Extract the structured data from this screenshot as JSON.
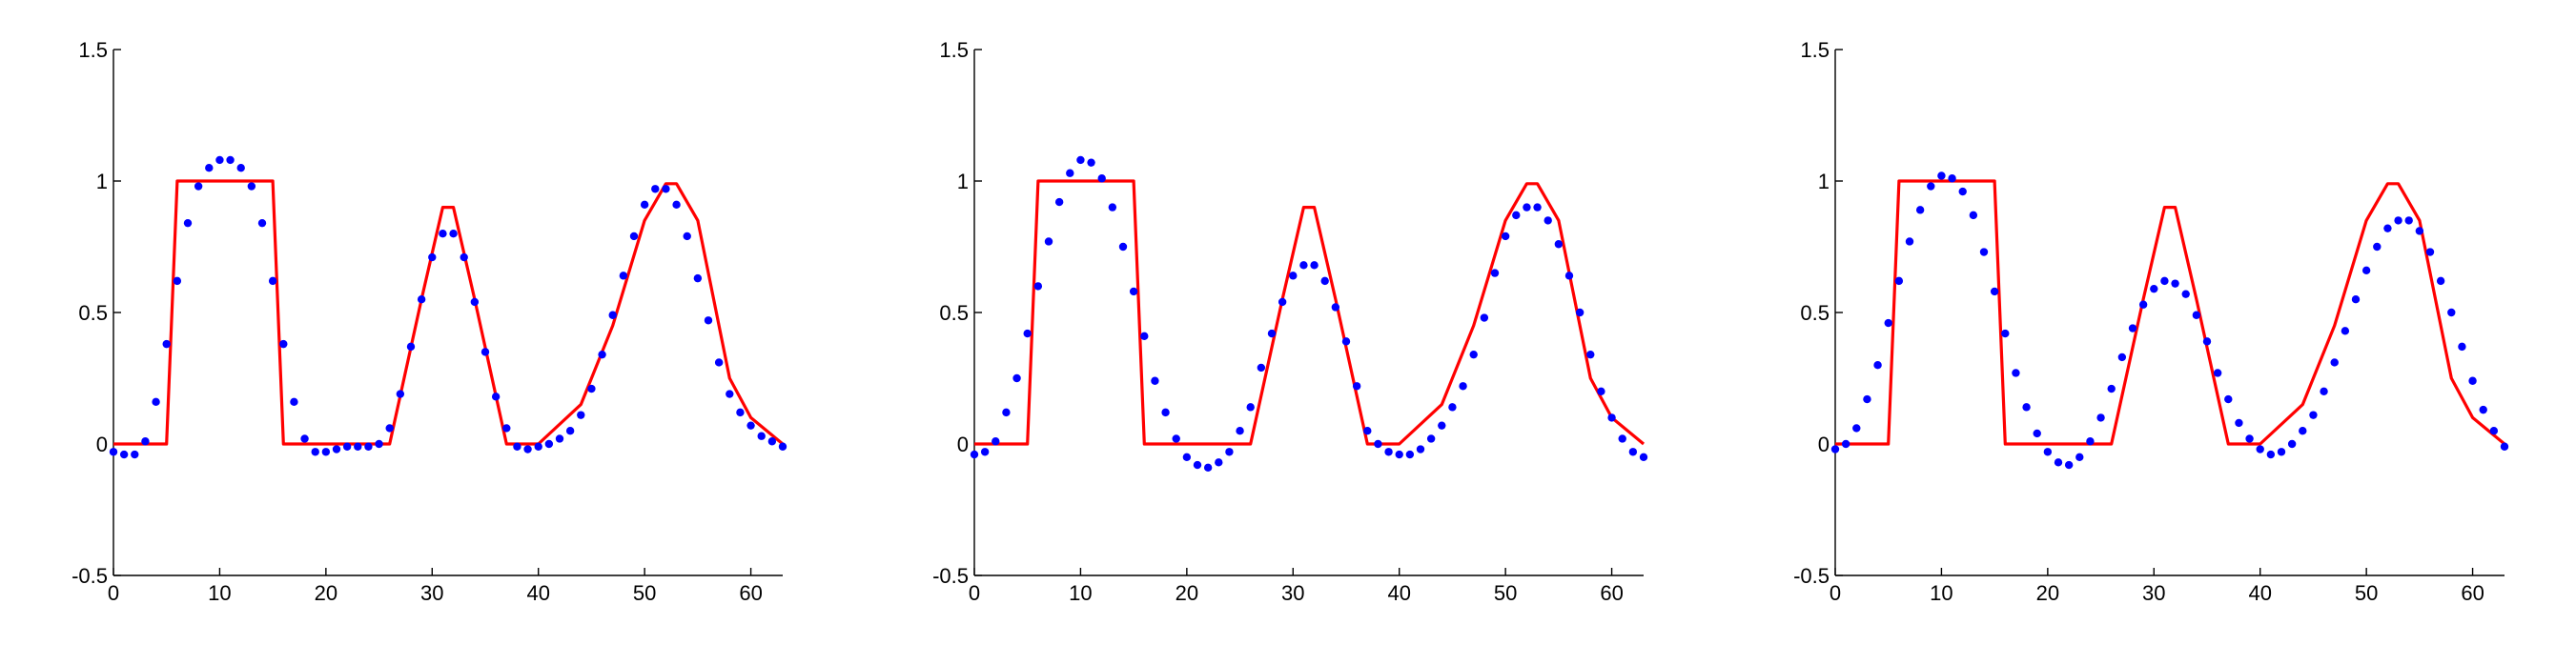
{
  "chart_data": [
    {
      "type": "line",
      "xlim": [
        0,
        63
      ],
      "ylim": [
        -0.5,
        1.5
      ],
      "xticks": [
        0,
        10,
        20,
        30,
        40,
        50,
        60
      ],
      "yticks": [
        -0.5,
        0,
        0.5,
        1,
        1.5
      ],
      "xtick_labels": [
        "0",
        "10",
        "20",
        "30",
        "40",
        "50",
        "60"
      ],
      "ytick_labels": [
        "-0.5",
        "0",
        "0.5",
        "1",
        "1.5"
      ],
      "grid": false,
      "series": [
        {
          "style": "line",
          "color": "#ff0000",
          "x": [
            0,
            5,
            6,
            15,
            16,
            26,
            29,
            31,
            32,
            34,
            37,
            40,
            44,
            47,
            50,
            52,
            53,
            55,
            58,
            60,
            63
          ],
          "y": [
            0,
            0,
            1,
            1,
            0,
            0,
            0.55,
            0.9,
            0.9,
            0.55,
            0,
            0,
            0.15,
            0.45,
            0.85,
            0.99,
            0.99,
            0.85,
            0.25,
            0.1,
            0
          ]
        },
        {
          "style": "scatter",
          "color": "#0000ff",
          "x": [
            0,
            1,
            2,
            3,
            4,
            5,
            6,
            7,
            8,
            9,
            10,
            11,
            12,
            13,
            14,
            15,
            16,
            17,
            18,
            19,
            20,
            21,
            22,
            23,
            24,
            25,
            26,
            27,
            28,
            29,
            30,
            31,
            32,
            33,
            34,
            35,
            36,
            37,
            38,
            39,
            40,
            41,
            42,
            43,
            44,
            45,
            46,
            47,
            48,
            49,
            50,
            51,
            52,
            53,
            54,
            55,
            56,
            57,
            58,
            59,
            60,
            61,
            62,
            63
          ],
          "y": [
            -0.03,
            -0.04,
            -0.04,
            0.01,
            0.16,
            0.38,
            0.62,
            0.84,
            0.98,
            1.05,
            1.08,
            1.08,
            1.05,
            0.98,
            0.84,
            0.62,
            0.38,
            0.16,
            0.02,
            -0.03,
            -0.03,
            -0.02,
            -0.01,
            -0.01,
            -0.01,
            0.0,
            0.06,
            0.19,
            0.37,
            0.55,
            0.71,
            0.8,
            0.8,
            0.71,
            0.54,
            0.35,
            0.18,
            0.06,
            -0.01,
            -0.02,
            -0.01,
            0.0,
            0.02,
            0.05,
            0.11,
            0.21,
            0.34,
            0.49,
            0.64,
            0.79,
            0.91,
            0.97,
            0.97,
            0.91,
            0.79,
            0.63,
            0.47,
            0.31,
            0.19,
            0.12,
            0.07,
            0.03,
            0.01,
            -0.01
          ]
        }
      ]
    },
    {
      "type": "line",
      "xlim": [
        0,
        63
      ],
      "ylim": [
        -0.5,
        1.5
      ],
      "xticks": [
        0,
        10,
        20,
        30,
        40,
        50,
        60
      ],
      "yticks": [
        -0.5,
        0,
        0.5,
        1,
        1.5
      ],
      "xtick_labels": [
        "0",
        "10",
        "20",
        "30",
        "40",
        "50",
        "60"
      ],
      "ytick_labels": [
        "-0.5",
        "0",
        "0.5",
        "1",
        "1.5"
      ],
      "grid": false,
      "series": [
        {
          "style": "line",
          "color": "#ff0000",
          "x": [
            0,
            5,
            6,
            15,
            16,
            26,
            29,
            31,
            32,
            34,
            37,
            40,
            44,
            47,
            50,
            52,
            53,
            55,
            58,
            60,
            63
          ],
          "y": [
            0,
            0,
            1,
            1,
            0,
            0,
            0.55,
            0.9,
            0.9,
            0.55,
            0,
            0,
            0.15,
            0.45,
            0.85,
            0.99,
            0.99,
            0.85,
            0.25,
            0.1,
            0
          ]
        },
        {
          "style": "scatter",
          "color": "#0000ff",
          "x": [
            0,
            1,
            2,
            3,
            4,
            5,
            6,
            7,
            8,
            9,
            10,
            11,
            12,
            13,
            14,
            15,
            16,
            17,
            18,
            19,
            20,
            21,
            22,
            23,
            24,
            25,
            26,
            27,
            28,
            29,
            30,
            31,
            32,
            33,
            34,
            35,
            36,
            37,
            38,
            39,
            40,
            41,
            42,
            43,
            44,
            45,
            46,
            47,
            48,
            49,
            50,
            51,
            52,
            53,
            54,
            55,
            56,
            57,
            58,
            59,
            60,
            61,
            62,
            63
          ],
          "y": [
            -0.04,
            -0.03,
            0.01,
            0.12,
            0.25,
            0.42,
            0.6,
            0.77,
            0.92,
            1.03,
            1.08,
            1.07,
            1.01,
            0.9,
            0.75,
            0.58,
            0.41,
            0.24,
            0.12,
            0.02,
            -0.05,
            -0.08,
            -0.09,
            -0.07,
            -0.03,
            0.05,
            0.14,
            0.29,
            0.42,
            0.54,
            0.64,
            0.68,
            0.68,
            0.62,
            0.52,
            0.39,
            0.22,
            0.05,
            0.0,
            -0.03,
            -0.04,
            -0.04,
            -0.02,
            0.02,
            0.07,
            0.14,
            0.22,
            0.34,
            0.48,
            0.65,
            0.79,
            0.87,
            0.9,
            0.9,
            0.85,
            0.76,
            0.64,
            0.5,
            0.34,
            0.2,
            0.1,
            0.02,
            -0.03,
            -0.05
          ]
        }
      ]
    },
    {
      "type": "line",
      "xlim": [
        0,
        63
      ],
      "ylim": [
        -0.5,
        1.5
      ],
      "xticks": [
        0,
        10,
        20,
        30,
        40,
        50,
        60
      ],
      "yticks": [
        -0.5,
        0,
        0.5,
        1,
        1.5
      ],
      "xtick_labels": [
        "0",
        "10",
        "20",
        "30",
        "40",
        "50",
        "60"
      ],
      "ytick_labels": [
        "-0.5",
        "0",
        "0.5",
        "1",
        "1.5"
      ],
      "grid": false,
      "series": [
        {
          "style": "line",
          "color": "#ff0000",
          "x": [
            0,
            5,
            6,
            15,
            16,
            26,
            29,
            31,
            32,
            34,
            37,
            40,
            44,
            47,
            50,
            52,
            53,
            55,
            58,
            60,
            63
          ],
          "y": [
            0,
            0,
            1,
            1,
            0,
            0,
            0.55,
            0.9,
            0.9,
            0.55,
            0,
            0,
            0.15,
            0.45,
            0.85,
            0.99,
            0.99,
            0.85,
            0.25,
            0.1,
            0
          ]
        },
        {
          "style": "scatter",
          "color": "#0000ff",
          "x": [
            0,
            1,
            2,
            3,
            4,
            5,
            6,
            7,
            8,
            9,
            10,
            11,
            12,
            13,
            14,
            15,
            16,
            17,
            18,
            19,
            20,
            21,
            22,
            23,
            24,
            25,
            26,
            27,
            28,
            29,
            30,
            31,
            32,
            33,
            34,
            35,
            36,
            37,
            38,
            39,
            40,
            41,
            42,
            43,
            44,
            45,
            46,
            47,
            48,
            49,
            50,
            51,
            52,
            53,
            54,
            55,
            56,
            57,
            58,
            59,
            60,
            61,
            62,
            63
          ],
          "y": [
            -0.02,
            0.0,
            0.06,
            0.17,
            0.3,
            0.46,
            0.62,
            0.77,
            0.89,
            0.98,
            1.02,
            1.01,
            0.96,
            0.87,
            0.73,
            0.58,
            0.42,
            0.27,
            0.14,
            0.04,
            -0.03,
            -0.07,
            -0.08,
            -0.05,
            0.01,
            0.1,
            0.21,
            0.33,
            0.44,
            0.53,
            0.59,
            0.62,
            0.61,
            0.57,
            0.49,
            0.39,
            0.27,
            0.17,
            0.08,
            0.02,
            -0.02,
            -0.04,
            -0.03,
            0.0,
            0.05,
            0.11,
            0.2,
            0.31,
            0.43,
            0.55,
            0.66,
            0.75,
            0.82,
            0.85,
            0.85,
            0.81,
            0.73,
            0.62,
            0.5,
            0.37,
            0.24,
            0.13,
            0.05,
            -0.01
          ]
        }
      ]
    }
  ]
}
